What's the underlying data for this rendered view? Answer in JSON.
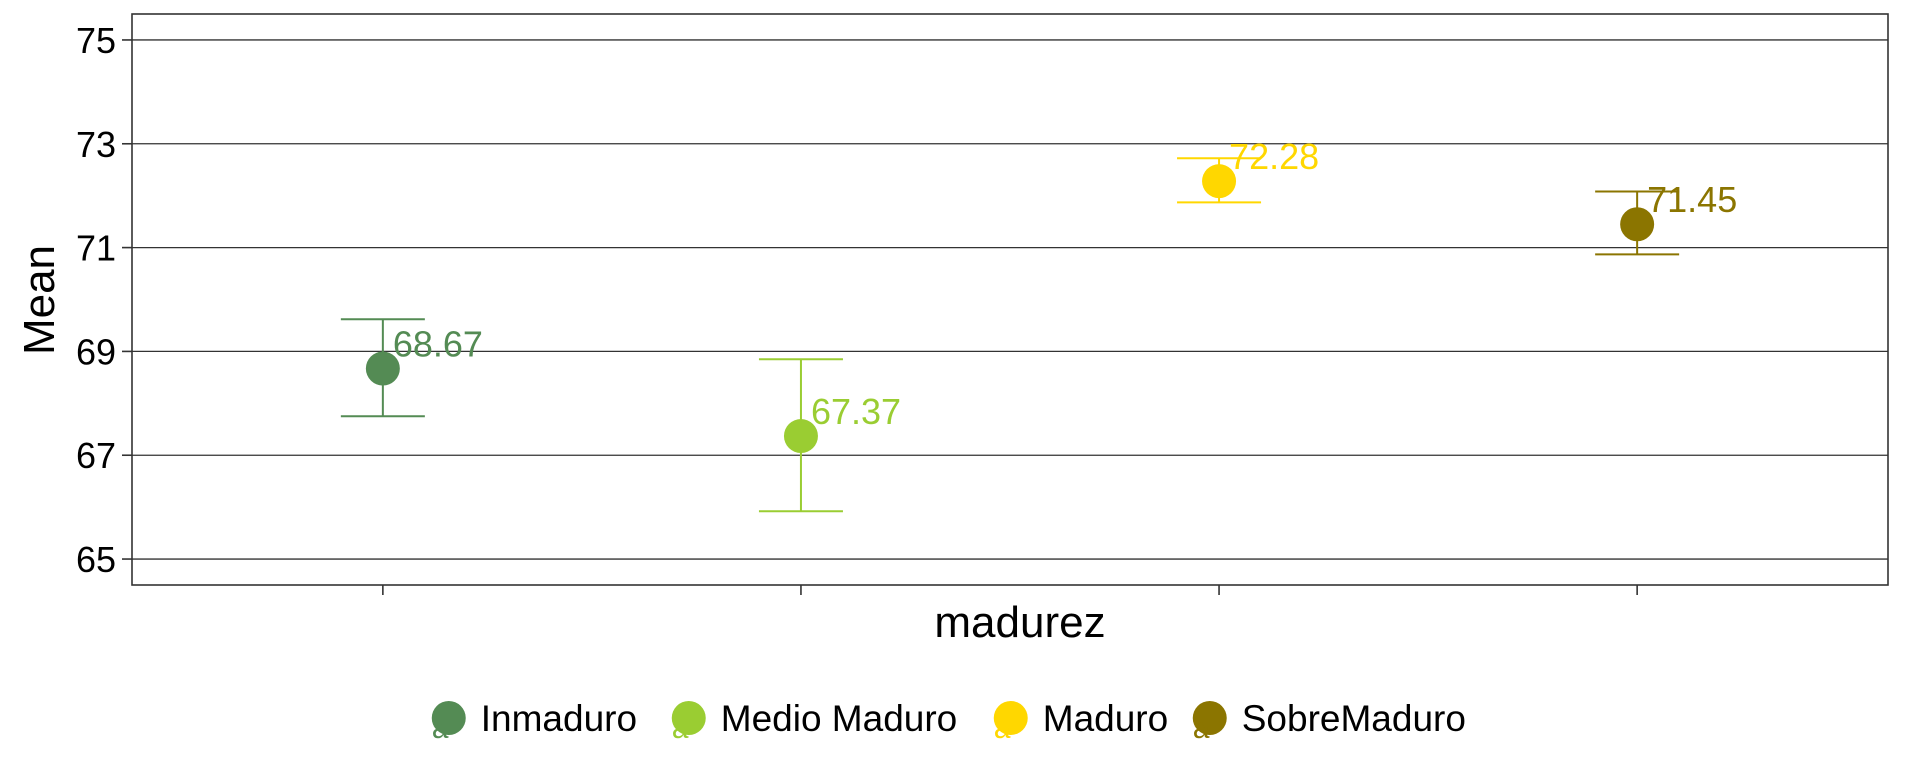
{
  "chart_data": {
    "type": "scatter",
    "title": "",
    "xlabel": "madurez",
    "ylabel": "Mean",
    "ylim": [
      64.5,
      75.5
    ],
    "yticks": [
      65,
      67,
      69,
      71,
      73,
      75
    ],
    "ytick_labels": [
      "65",
      "67",
      "69",
      "71",
      "73",
      "75"
    ],
    "grid": "horizontal",
    "legend_position": "bottom",
    "legend_glyph": "a",
    "series": [
      {
        "name": "Inmaduro",
        "mean": 68.67,
        "lower": 67.75,
        "upper": 69.62,
        "label": "68.67",
        "color": "#548B54"
      },
      {
        "name": "Medio Maduro",
        "mean": 67.37,
        "lower": 65.92,
        "upper": 68.85,
        "label": "67.37",
        "color": "#9ACD32"
      },
      {
        "name": "Maduro",
        "mean": 72.28,
        "lower": 71.87,
        "upper": 72.72,
        "label": "72.28",
        "color": "#FFD700"
      },
      {
        "name": "SobreMaduro",
        "mean": 71.45,
        "lower": 70.87,
        "upper": 72.08,
        "label": "71.45",
        "color": "#8B7500"
      }
    ]
  }
}
